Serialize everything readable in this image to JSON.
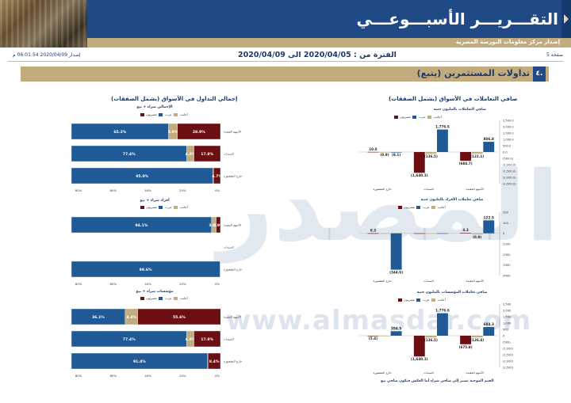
{
  "header": {
    "title": "التقـــريـــر الأسبـــوعـــي",
    "subtitle": "إصدار مركز معلومات البورصة المصرية",
    "page_label": "صفحة 5",
    "issue": "إصدار 2020/04/09 06:01:54 م",
    "period": "الفترة من : 2020/04/05 الى 2020/04/09"
  },
  "section": {
    "number": "٤.",
    "title": "تداولات المستثمرين (يتبع)"
  },
  "watermark": {
    "logo": "المصدر",
    "url": "www.almasdar.com"
  },
  "colors": {
    "egyptians": "#1f5a96",
    "arabs": "#c2ab7c",
    "foreigners": "#6b0f12"
  },
  "legend": {
    "egyptians": "مصريون",
    "arabs": "عرب",
    "foreigners": "أجانب"
  },
  "right_panel": {
    "title": "صافي التعاملات في الأسواق (يشمل الصفقات)",
    "note": "القيم الموجبة تشير إلى صافي شراء أما العكس فيكون صافي بيع"
  },
  "left_panel": {
    "title": "إجمالي التداول في الأسواق (يشمل الصفقات)"
  },
  "chart_data": [
    {
      "type": "bar",
      "title": "صافي التعاملات بالمليون جنيه",
      "categories": [
        "الأسهم المقيدة",
        "السندات",
        "خارج المقصورة"
      ],
      "series": [
        {
          "name": "مصريون",
          "values": [
            806.8,
            1776.6,
            -9.1
          ]
        },
        {
          "name": "عرب",
          "values": [
            -122.1,
            -136.5,
            -0.9
          ]
        },
        {
          "name": "أجانب",
          "values": [
            -684.7,
            -1640.1,
            10.0
          ]
        }
      ],
      "ylim": [
        -2500,
        2500
      ],
      "yticks": [
        "(2,500.0)",
        "(2,000.0)",
        "(1,500.0)",
        "(1,000.0)",
        "(500.0)",
        "0.0",
        "500.0",
        "1,000.0",
        "1,500.0",
        "2,000.0",
        "2,500.0"
      ]
    },
    {
      "type": "bar",
      "title": "صافي تعاملات الأفراد بالمليون جنيه",
      "categories": [
        "الأسهم المقيدة",
        "السندات",
        "خارج المقصورة"
      ],
      "series": [
        {
          "name": "مصريون",
          "values": [
            122.5,
            0,
            -344.6
          ]
        },
        {
          "name": "عرب",
          "values": [
            -8.9,
            0,
            0
          ]
        },
        {
          "name": "أجانب",
          "values": [
            4.3,
            0,
            0.3
          ]
        }
      ],
      "ylim": [
        -400,
        200
      ],
      "yticks": [
        "(400)",
        "(300)",
        "(200)",
        "(100)",
        "0",
        "100",
        "200"
      ]
    },
    {
      "type": "bar",
      "title": "صافي تعاملات المؤسسات بالمليون جنيه",
      "categories": [
        "الأسهم المقيدة",
        "السندات",
        "خارج المقصورة"
      ],
      "series": [
        {
          "name": "مصريون",
          "values": [
            684.3,
            1776.6,
            354.5
          ]
        },
        {
          "name": "عرب",
          "values": [
            -126.4,
            -136.5,
            0
          ]
        },
        {
          "name": "أجانب",
          "values": [
            -675.8,
            -1640.1,
            -5.4
          ]
        }
      ],
      "ylim": [
        -2500,
        2500
      ],
      "yticks": [
        "(2,500)",
        "(2,000)",
        "(1,500)",
        "(1,000)",
        "(500)",
        "0",
        "500",
        "1,000",
        "1,500",
        "2,000",
        "2,500"
      ]
    },
    {
      "type": "bar",
      "stacked": "percent",
      "title": "الإجمالي شراء + بيع",
      "categories": [
        "الأسهم المقيدة",
        "السندات",
        "خارج المقصورة"
      ],
      "series": [
        {
          "name": "مصريون",
          "values": [
            65.2,
            77.4,
            95.0
          ]
        },
        {
          "name": "عرب",
          "values": [
            5.9,
            4.8,
            0.3
          ]
        },
        {
          "name": "أجانب",
          "values": [
            28.9,
            17.8,
            4.7
          ]
        }
      ],
      "xticks": [
        "0%",
        "20%",
        "40%",
        "60%",
        "80%"
      ]
    },
    {
      "type": "bar",
      "stacked": "percent",
      "title": "أفراد شراء + بيع",
      "categories": [
        "الأسهم المقيدة",
        "السندات",
        "خارج المقصورة"
      ],
      "series": [
        {
          "name": "مصريون",
          "values": [
            94.1,
            0,
            99.6
          ]
        },
        {
          "name": "عرب",
          "values": [
            3.0,
            0,
            0.1
          ]
        },
        {
          "name": "أجانب",
          "values": [
            2.9,
            0,
            0.3
          ]
        }
      ],
      "xticks": [
        "0%",
        "20%",
        "40%",
        "60%",
        "80%"
      ]
    },
    {
      "type": "bar",
      "stacked": "percent",
      "title": "مؤسسات شراء + بيع",
      "categories": [
        "الأسهم المقيدة",
        "السندات",
        "خارج المقصورة"
      ],
      "series": [
        {
          "name": "مصريون",
          "values": [
            36.1,
            77.4,
            91.4
          ]
        },
        {
          "name": "عرب",
          "values": [
            8.4,
            4.8,
            0.2
          ]
        },
        {
          "name": "أجانب",
          "values": [
            55.6,
            17.8,
            8.4
          ]
        }
      ],
      "xticks": [
        "0%",
        "20%",
        "40%",
        "60%",
        "80%"
      ]
    }
  ]
}
